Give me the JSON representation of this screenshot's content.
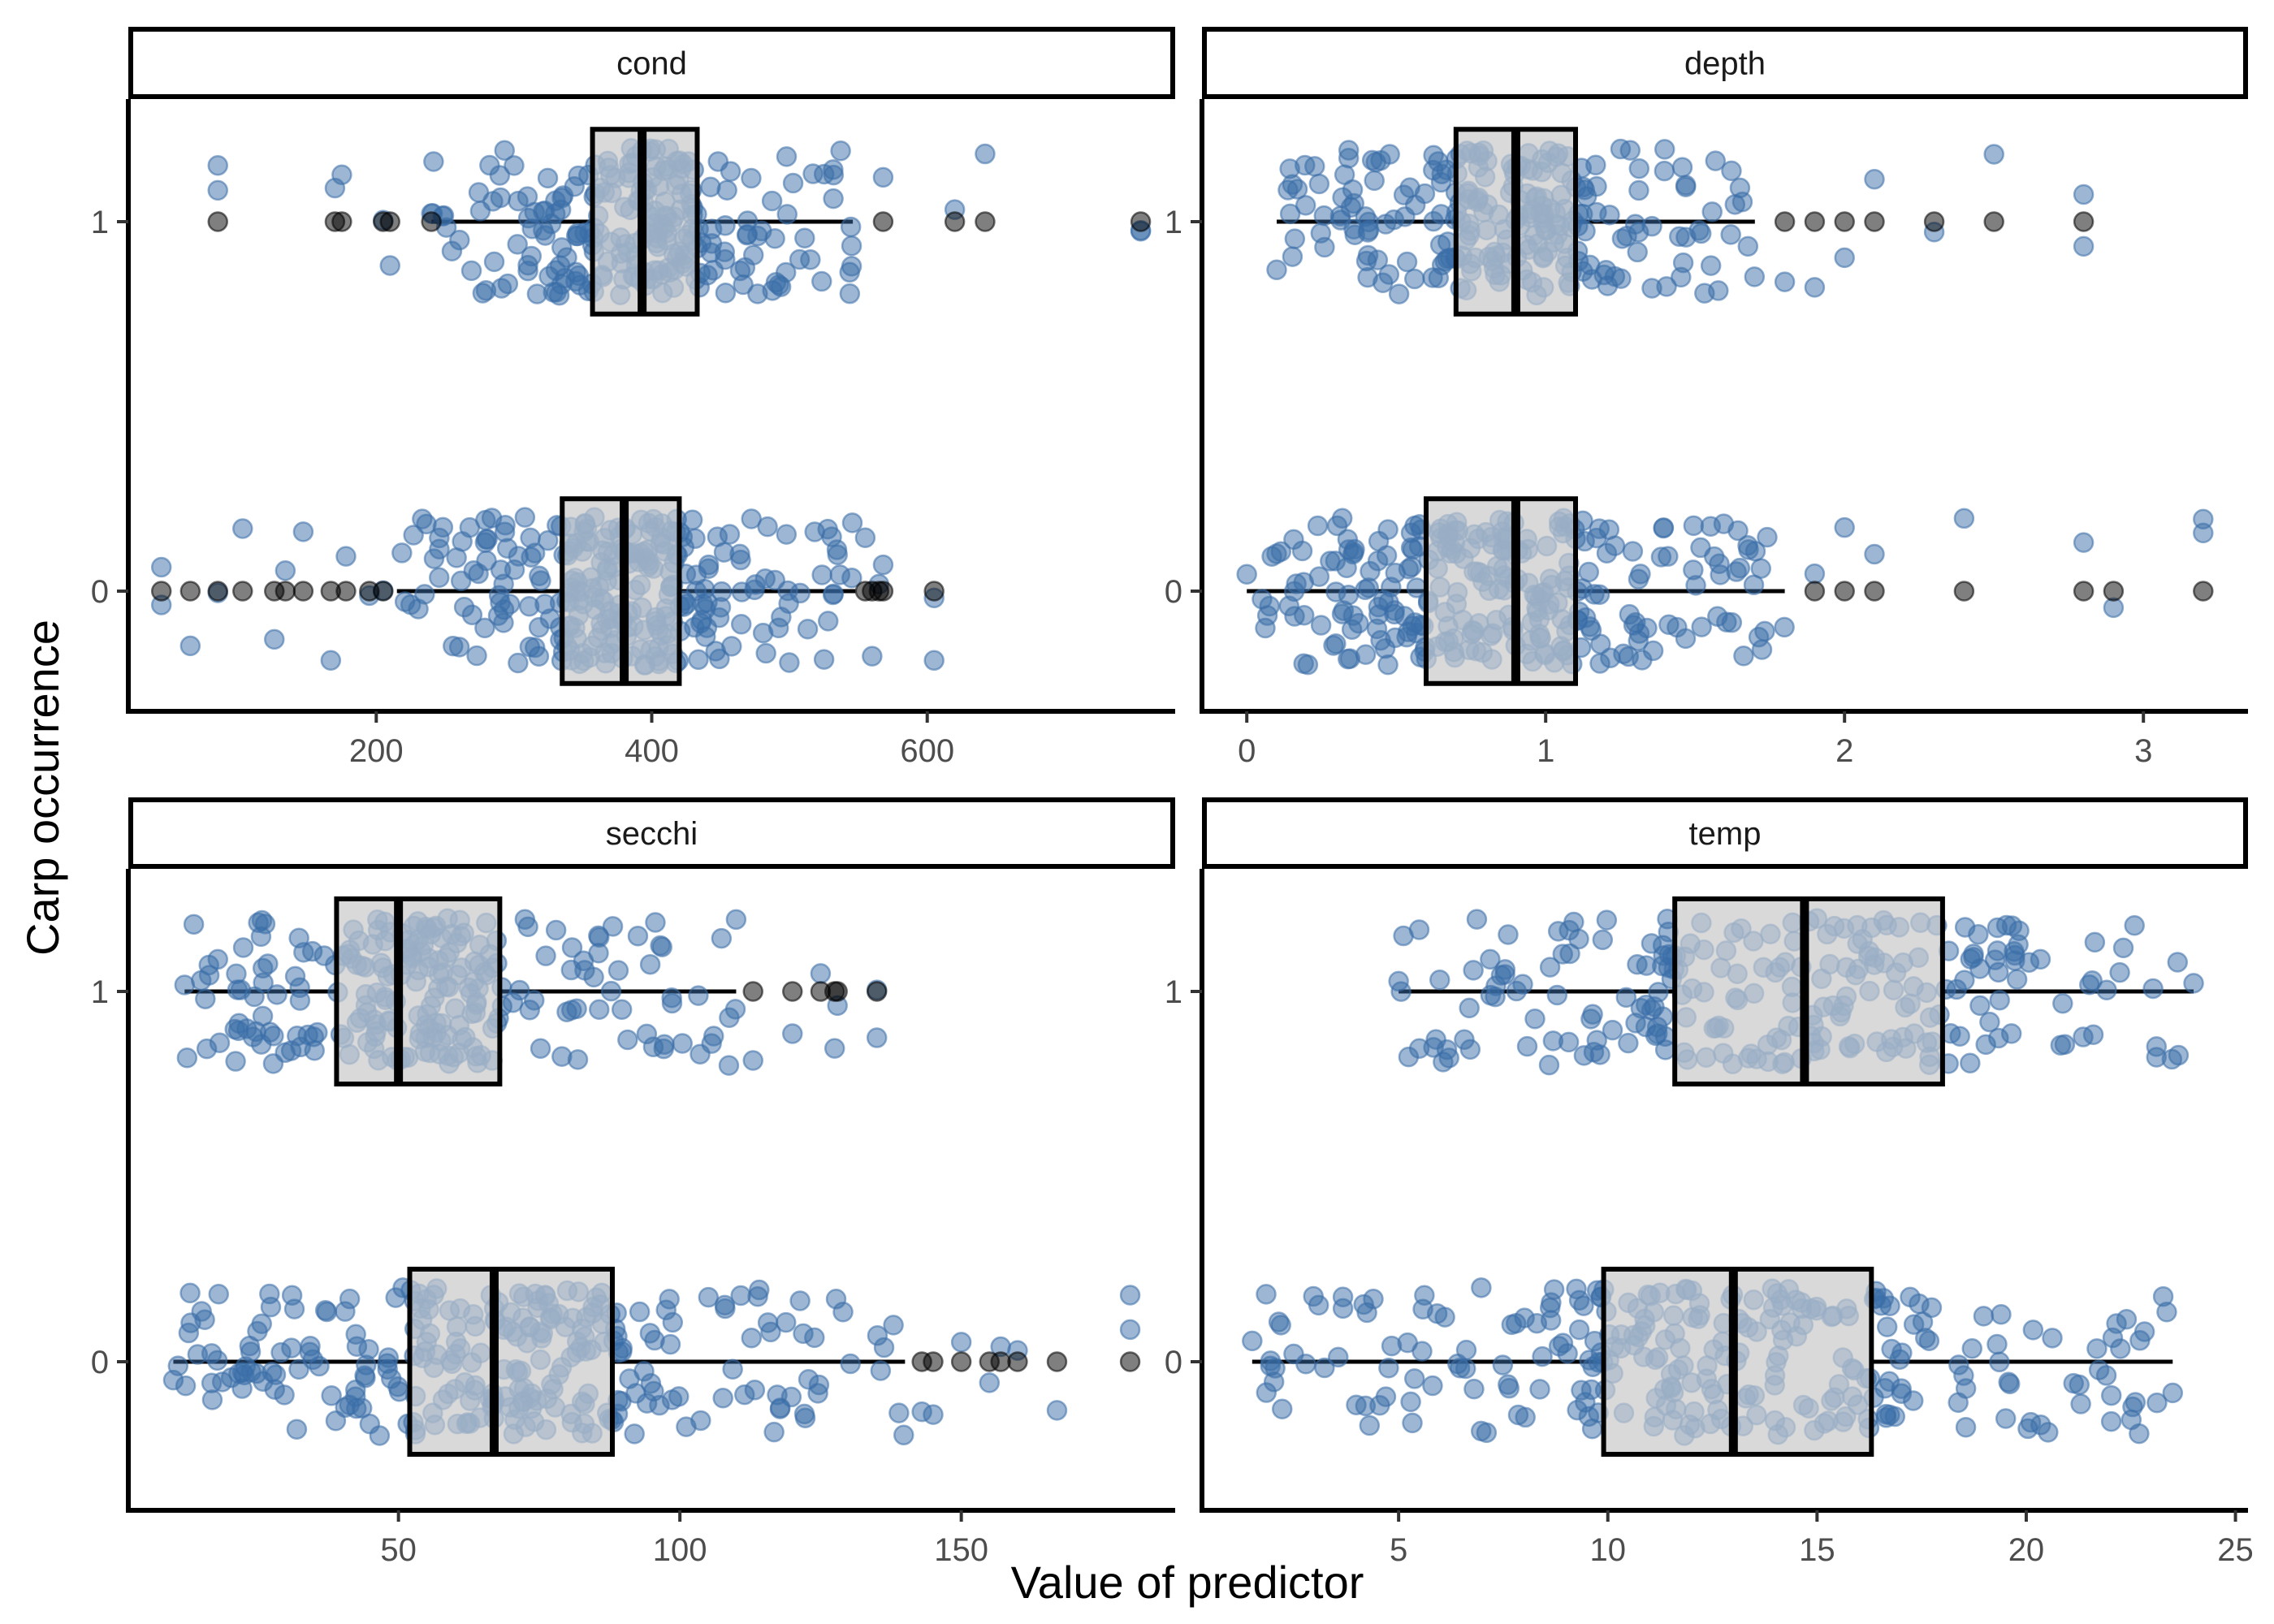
{
  "chart_data": {
    "type": "boxplot-jitter",
    "layout": "facet_wrap 2x2, free x scales",
    "xlabel": "Value of predictor",
    "ylabel": "Carp occurrence",
    "y_categories": [
      "0",
      "1"
    ],
    "grid": false,
    "legend": "none",
    "colors": {
      "point": "#3a6ea8",
      "point_alpha": 0.5,
      "outlier": "#000000",
      "outlier_alpha": 0.5,
      "box_fill": "#d9d9d9",
      "box_line": "#000000",
      "strip_border": "#000000"
    },
    "facets": [
      {
        "name": "cond",
        "x_ticks": [
          200,
          400,
          600
        ],
        "x_range": [
          20,
          780
        ],
        "groups": [
          {
            "y": "1",
            "min": 240,
            "q1": 357,
            "median": 393,
            "q3": 433,
            "max": 546,
            "outliers": [
              85,
              170,
              175,
              205,
              210,
              240,
              568,
              620,
              642,
              755
            ],
            "range": [
              85,
              755
            ],
            "n": 240
          },
          {
            "y": "0",
            "min": 215,
            "q1": 335,
            "median": 380,
            "q3": 420,
            "max": 548,
            "outliers": [
              44,
              65,
              85,
              103,
              126,
              134,
              147,
              167,
              178,
              195,
              205,
              555,
              560,
              565,
              568,
              605
            ],
            "range": [
              44,
              605
            ],
            "n": 280
          }
        ]
      },
      {
        "name": "depth",
        "x_ticks": [
          0,
          1,
          2,
          3
        ],
        "x_range": [
          -0.15,
          3.35
        ],
        "groups": [
          {
            "y": "1",
            "min": 0.1,
            "q1": 0.7,
            "median": 0.9,
            "q3": 1.1,
            "max": 1.7,
            "outliers": [
              1.8,
              1.9,
              2.0,
              2.1,
              2.3,
              2.5,
              2.8
            ],
            "range": [
              0.1,
              2.8
            ],
            "n": 240
          },
          {
            "y": "0",
            "min": 0.0,
            "q1": 0.6,
            "median": 0.9,
            "q3": 1.1,
            "max": 1.8,
            "outliers": [
              1.9,
              2.0,
              2.1,
              2.4,
              2.8,
              2.9,
              3.2
            ],
            "range": [
              0.0,
              3.2
            ],
            "n": 280
          }
        ]
      },
      {
        "name": "secchi",
        "x_ticks": [
          50,
          100,
          150
        ],
        "x_range": [
          2,
          188
        ],
        "groups": [
          {
            "y": "1",
            "min": 12,
            "q1": 39,
            "median": 50,
            "q3": 68,
            "max": 110,
            "outliers": [
              113,
              120,
              125,
              127.5,
              128,
              135
            ],
            "range": [
              12,
              135
            ],
            "n": 240
          },
          {
            "y": "0",
            "min": 10,
            "q1": 52,
            "median": 67,
            "q3": 88,
            "max": 140,
            "outliers": [
              143,
              145,
              150,
              155,
              157,
              160,
              167,
              180
            ],
            "range": [
              10,
              180
            ],
            "n": 280
          }
        ]
      },
      {
        "name": "temp",
        "x_ticks": [
          5,
          10,
          15,
          20,
          25
        ],
        "x_range": [
          0.3,
          25.3
        ],
        "groups": [
          {
            "y": "1",
            "min": 5.0,
            "q1": 11.6,
            "median": 14.7,
            "q3": 18.0,
            "max": 24.0,
            "outliers": [],
            "range": [
              5.0,
              24.0
            ],
            "n": 240
          },
          {
            "y": "0",
            "min": 1.5,
            "q1": 9.9,
            "median": 13.0,
            "q3": 16.3,
            "max": 23.5,
            "outliers": [],
            "range": [
              1.5,
              23.5
            ],
            "n": 280
          }
        ]
      }
    ]
  }
}
